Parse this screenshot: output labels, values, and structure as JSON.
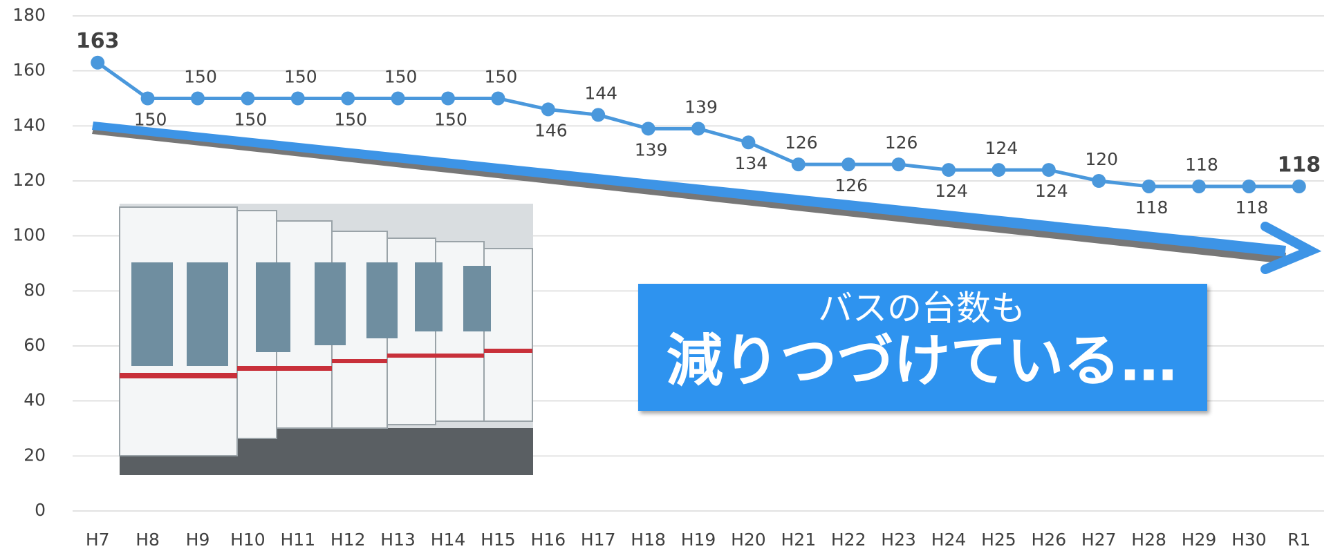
{
  "chart_data": {
    "type": "line",
    "categories": [
      "H7",
      "H8",
      "H9",
      "H10",
      "H11",
      "H12",
      "H13",
      "H14",
      "H15",
      "H16",
      "H17",
      "H18",
      "H19",
      "H20",
      "H21",
      "H22",
      "H23",
      "H24",
      "H25",
      "H26",
      "H27",
      "H28",
      "H29",
      "H30",
      "R1"
    ],
    "series": [
      {
        "color": "#4a98dc",
        "values": [
          163,
          150,
          150,
          150,
          150,
          150,
          150,
          150,
          150,
          146,
          144,
          139,
          139,
          134,
          126,
          126,
          126,
          124,
          124,
          124,
          120,
          118,
          118,
          118,
          118
        ]
      }
    ],
    "ylim": [
      0,
      180
    ],
    "yticks": [
      0,
      20,
      40,
      60,
      80,
      100,
      120,
      140,
      160,
      180
    ],
    "grid": true,
    "annotations": [
      "バスの台数も",
      "減りつづけている…"
    ]
  }
}
